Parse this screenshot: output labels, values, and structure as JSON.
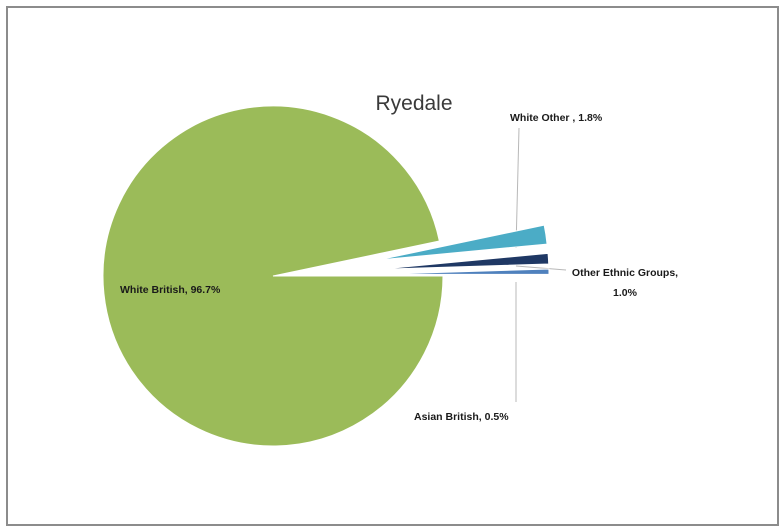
{
  "chart_data": {
    "type": "pie",
    "title": "Ryedale",
    "slices": [
      {
        "name": "White British",
        "value": 96.7,
        "label": "White British, 96.7%",
        "color": "#9bbb59"
      },
      {
        "name": "White Other",
        "value": 1.8,
        "label": "White Other , 1.8%",
        "color": "#4bacc6"
      },
      {
        "name": "Other Ethnic Groups",
        "value": 1.0,
        "label_lines": [
          "Other Ethnic Groups,",
          "1.0%"
        ],
        "color": "#1f3864"
      },
      {
        "name": "Asian British",
        "value": 0.5,
        "label": "Asian British, 0.5%",
        "color": "#4f81bd"
      }
    ],
    "exploded": true,
    "legend": "none"
  }
}
